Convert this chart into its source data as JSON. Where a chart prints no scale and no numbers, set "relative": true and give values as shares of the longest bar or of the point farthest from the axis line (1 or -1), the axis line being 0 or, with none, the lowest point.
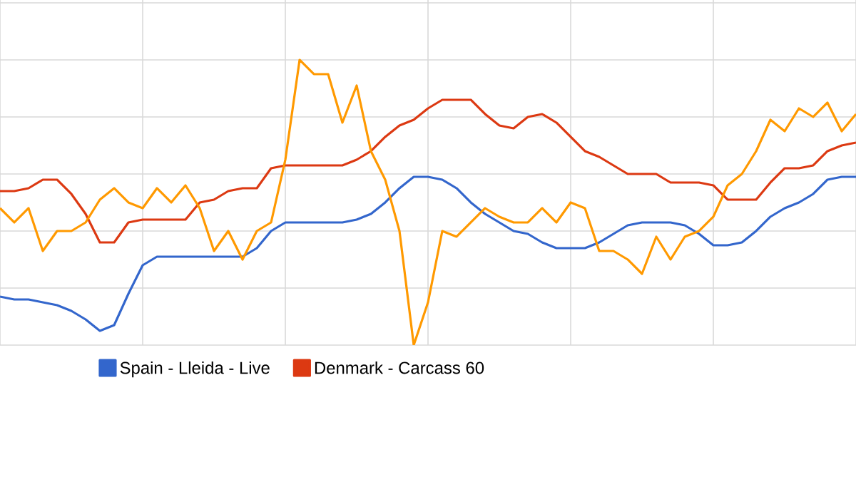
{
  "chart_data": {
    "type": "line",
    "relative": true,
    "grid": true,
    "legend": "bottom",
    "marker": "none",
    "line_style": "solid",
    "categories": [
      null,
      null,
      null,
      null,
      null,
      null,
      null,
      null,
      null,
      null,
      null,
      null,
      null,
      null,
      null,
      null,
      null,
      null,
      null,
      null,
      null,
      null,
      null,
      null,
      null,
      null,
      null,
      null,
      null,
      null,
      null,
      null,
      null,
      null,
      null,
      null,
      null,
      null,
      null,
      null,
      null,
      null,
      null,
      null,
      null,
      null,
      null,
      null,
      null,
      null,
      null,
      null,
      null,
      null,
      null,
      null,
      null,
      null,
      null,
      null,
      null
    ],
    "series": [
      {
        "name": "Spain - Lleida - Live",
        "color": "#3366cc",
        "values": [
          0.17,
          0.16,
          0.16,
          0.15,
          0.14,
          0.12,
          0.09,
          0.05,
          0.07,
          0.18,
          0.28,
          0.31,
          0.31,
          0.31,
          0.31,
          0.31,
          0.31,
          0.31,
          0.34,
          0.4,
          0.43,
          0.43,
          0.43,
          0.43,
          0.43,
          0.44,
          0.46,
          0.5,
          0.55,
          0.59,
          0.59,
          0.58,
          0.55,
          0.5,
          0.46,
          0.43,
          0.4,
          0.39,
          0.36,
          0.34,
          0.34,
          0.34,
          0.36,
          0.39,
          0.42,
          0.43,
          0.43,
          0.43,
          0.42,
          0.39,
          0.35,
          0.35,
          0.36,
          0.4,
          0.45,
          0.48,
          0.5,
          0.53,
          0.58,
          0.59,
          0.59
        ]
      },
      {
        "name": "Denmark - Carcass 60",
        "color": "#dc3912",
        "values": [
          0.54,
          0.54,
          0.55,
          0.58,
          0.58,
          0.53,
          0.46,
          0.36,
          0.36,
          0.43,
          0.44,
          0.44,
          0.44,
          0.44,
          0.5,
          0.51,
          0.54,
          0.55,
          0.55,
          0.62,
          0.63,
          0.63,
          0.63,
          0.63,
          0.63,
          0.65,
          0.68,
          0.73,
          0.77,
          0.79,
          0.83,
          0.86,
          0.86,
          0.86,
          0.81,
          0.77,
          0.76,
          0.8,
          0.81,
          0.78,
          0.73,
          0.68,
          0.66,
          0.63,
          0.6,
          0.6,
          0.6,
          0.57,
          0.57,
          0.57,
          0.56,
          0.51,
          0.51,
          0.51,
          0.57,
          0.62,
          0.62,
          0.63,
          0.68,
          0.7,
          0.71
        ]
      },
      {
        "color": "#ff9900",
        "values": [
          0.48,
          0.43,
          0.48,
          0.33,
          0.4,
          0.4,
          0.43,
          0.51,
          0.55,
          0.5,
          0.48,
          0.55,
          0.5,
          0.56,
          0.48,
          0.33,
          0.4,
          0.3,
          0.4,
          0.43,
          0.65,
          1.0,
          0.95,
          0.95,
          0.78,
          0.91,
          0.68,
          0.58,
          0.4,
          0.0,
          0.15,
          0.4,
          0.38,
          0.43,
          0.48,
          0.45,
          0.43,
          0.43,
          0.48,
          0.43,
          0.5,
          0.48,
          0.33,
          0.33,
          0.3,
          0.25,
          0.38,
          0.3,
          0.38,
          0.4,
          0.45,
          0.56,
          0.6,
          0.68,
          0.79,
          0.75,
          0.83,
          0.8,
          0.85,
          0.75,
          0.81
        ]
      }
    ]
  }
}
